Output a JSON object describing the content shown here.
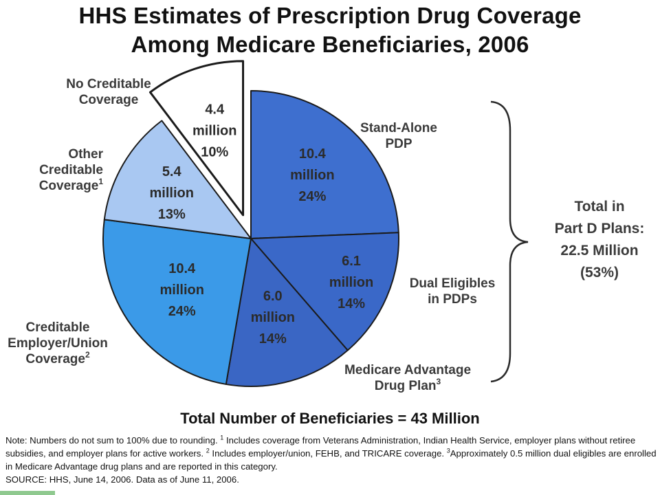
{
  "colors": {
    "stand_alone": "#3e6fcf",
    "dual": "#3a68c8",
    "ma": "#3a66c4",
    "employer": "#3b9ae8",
    "other": "#a9c8f2",
    "none": "#ffffff",
    "stroke": "#1b1b1b"
  },
  "chart_data": {
    "type": "pie",
    "title_lines": [
      "HHS Estimates of Prescription Drug Coverage",
      "Among Medicare Beneficiaries, 2006"
    ],
    "unit": "million",
    "slices": [
      {
        "id": "stand_alone",
        "label_lines": [
          "Stand-Alone",
          "PDP"
        ],
        "sup": "",
        "value": 10.4,
        "value_text": "10.4",
        "percent": 24,
        "percent_text": "24%",
        "color_key": "stand_alone",
        "exploded": false
      },
      {
        "id": "dual",
        "label_lines": [
          "Dual Eligibles",
          "in PDPs"
        ],
        "sup": "",
        "value": 6.1,
        "value_text": "6.1",
        "percent": 14,
        "percent_text": "14%",
        "color_key": "dual",
        "exploded": false
      },
      {
        "id": "ma",
        "label_lines": [
          "Medicare Advantage",
          "Drug Plan"
        ],
        "sup": "3",
        "value": 6.0,
        "value_text": "6.0",
        "percent": 14,
        "percent_text": "14%",
        "color_key": "ma",
        "exploded": false
      },
      {
        "id": "employer",
        "label_lines": [
          "Creditable",
          "Employer/Union",
          "Coverage"
        ],
        "sup": "2",
        "value": 10.4,
        "value_text": "10.4",
        "percent": 24,
        "percent_text": "24%",
        "color_key": "employer",
        "exploded": false
      },
      {
        "id": "other",
        "label_lines": [
          "Other",
          "Creditable",
          "Coverage"
        ],
        "sup": "1",
        "value": 5.4,
        "value_text": "5.4",
        "percent": 13,
        "percent_text": "13%",
        "color_key": "other",
        "exploded": false
      },
      {
        "id": "none",
        "label_lines": [
          "No Creditable",
          "Coverage"
        ],
        "sup": "",
        "value": 4.4,
        "value_text": "4.4",
        "percent": 10,
        "percent_text": "10%",
        "color_key": "none",
        "exploded": true
      }
    ],
    "bracket_label_lines": [
      "Total in",
      "Part D Plans:",
      "22.5 Million",
      "(53%)"
    ],
    "total_text": "Total Number of Beneficiaries = 43 Million"
  },
  "note": {
    "text_1": "Note: Numbers do not sum to 100% due to rounding. ",
    "sup_1": "1",
    "text_2": " Includes coverage from Veterans Administration, Indian Health Service, employer plans without retiree subsidies, and employer plans for active workers. ",
    "sup_2": "2",
    "text_3": " Includes employer/union, FEHB, and TRICARE coverage. ",
    "sup_3": "3",
    "text_4": "Approximately 0.5 million dual eligibles are enrolled in Medicare Advantage drug plans and are reported in this category.",
    "source": "SOURCE: HHS, June 14, 2006.  Data as of June 11, 2006."
  }
}
